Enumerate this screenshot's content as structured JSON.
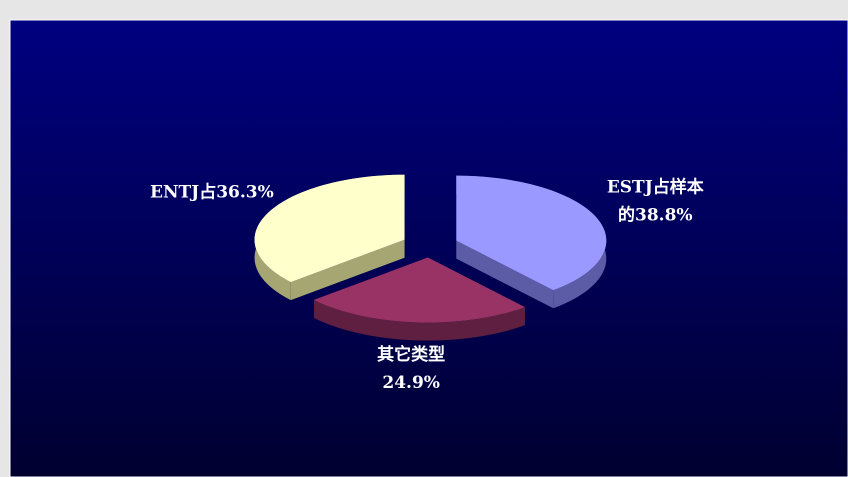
{
  "chart_data": {
    "type": "pie3d",
    "values": [
      38.8,
      24.9,
      36.3
    ],
    "value_labels": [
      [
        "ESTJ占样本",
        "的38.8%"
      ],
      [
        "其它类型",
        "24.9%"
      ],
      [
        "ENTJ占36.3%"
      ]
    ],
    "colors": [
      "#9999ff",
      "#993366",
      "#ffffcc"
    ],
    "side_colors": [
      "#5c5ca6",
      "#5e1f40",
      "#a6a672"
    ],
    "exploded": true
  }
}
